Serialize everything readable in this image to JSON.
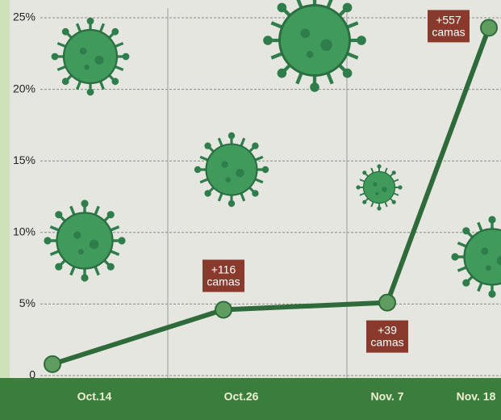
{
  "chart_data": {
    "type": "line",
    "categories": [
      "Oct.14",
      "Oct.26",
      "Nov. 7",
      "Nov. 18"
    ],
    "values": [
      0.8,
      4.6,
      5.1,
      24.3
    ],
    "point_labels": [
      null,
      "+116 camas",
      "+39 camas",
      "+557 camas"
    ],
    "color": "#2f6b3a",
    "ylim": [
      0,
      25
    ],
    "yticks": [
      0,
      {
        "value": 5,
        "label": "5%"
      },
      {
        "value": 10,
        "label": "10%"
      },
      {
        "value": 15,
        "label": "15%"
      },
      {
        "value": 20,
        "label": "20%"
      },
      {
        "value": 25,
        "label": "25%"
      }
    ],
    "grid": true
  }
}
